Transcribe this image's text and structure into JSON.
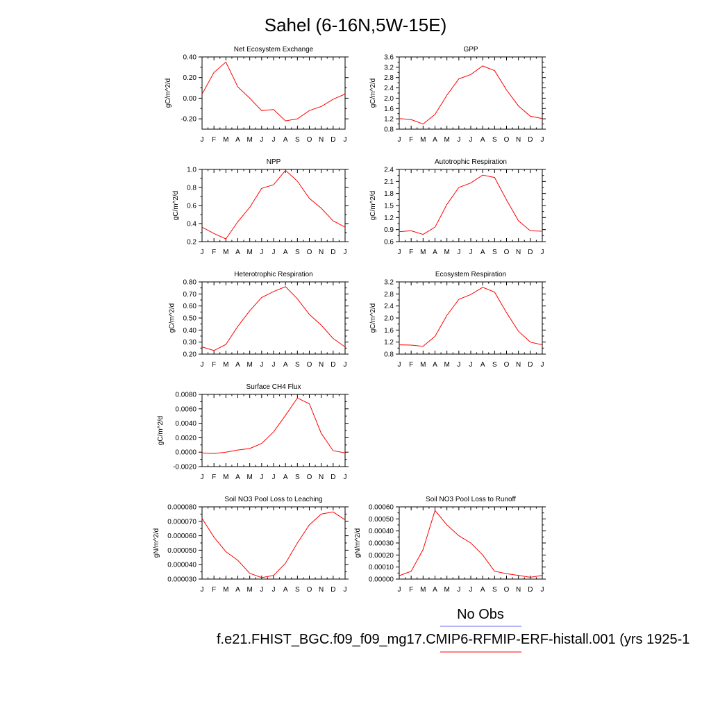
{
  "page": {
    "title": "Sahel (6-16N,5W-15E)",
    "legend": {
      "no_obs_label": "No Obs",
      "no_obs_color": "#6a6aee",
      "case_label": "f.e21.FHIST_BGC.f09_f09_mg17.CMIP6-RFMIP-ERF-histall.001 (yrs 1925-1",
      "case_color": "#ff0000"
    }
  },
  "chart_data": [
    {
      "type": "line",
      "title": "Net Ecosystem Exchange",
      "ylabel": "gC/m^2/d",
      "x": [
        "J",
        "F",
        "M",
        "A",
        "M",
        "J",
        "J",
        "A",
        "S",
        "O",
        "N",
        "D",
        "J"
      ],
      "ylim": [
        -0.3,
        0.4
      ],
      "yticks": [
        -0.2,
        0.0,
        0.2,
        0.4
      ],
      "yticklabels": [
        "-0.20",
        "0.00",
        "0.20",
        "0.40"
      ],
      "series": [
        {
          "color": "#ff0000",
          "values": [
            0.04,
            0.25,
            0.35,
            0.11,
            0.0,
            -0.12,
            -0.11,
            -0.22,
            -0.2,
            -0.12,
            -0.08,
            -0.01,
            0.04
          ]
        }
      ]
    },
    {
      "type": "line",
      "title": "GPP",
      "ylabel": "gC/m^2/d",
      "x": [
        "J",
        "F",
        "M",
        "A",
        "M",
        "J",
        "J",
        "A",
        "S",
        "O",
        "N",
        "D",
        "J"
      ],
      "ylim": [
        0.8,
        3.6
      ],
      "yticks": [
        0.8,
        1.2,
        1.6,
        2.0,
        2.4,
        2.8,
        3.2,
        3.6
      ],
      "yticklabels": [
        "0.8",
        "1.2",
        "1.6",
        "2.0",
        "2.4",
        "2.8",
        "3.2",
        "3.6"
      ],
      "series": [
        {
          "color": "#ff0000",
          "values": [
            1.21,
            1.17,
            1.0,
            1.37,
            2.12,
            2.75,
            2.92,
            3.25,
            3.07,
            2.32,
            1.7,
            1.3,
            1.21
          ]
        }
      ]
    },
    {
      "type": "line",
      "title": "NPP",
      "ylabel": "gC/m^2/d",
      "x": [
        "J",
        "F",
        "M",
        "A",
        "M",
        "J",
        "J",
        "A",
        "S",
        "O",
        "N",
        "D",
        "J"
      ],
      "ylim": [
        0.2,
        1.0
      ],
      "yticks": [
        0.2,
        0.4,
        0.6,
        0.8,
        1.0
      ],
      "yticklabels": [
        "0.2",
        "0.4",
        "0.6",
        "0.8",
        "1.0"
      ],
      "series": [
        {
          "color": "#ff0000",
          "values": [
            0.36,
            0.29,
            0.23,
            0.42,
            0.58,
            0.79,
            0.83,
            0.99,
            0.87,
            0.68,
            0.57,
            0.43,
            0.36
          ]
        }
      ]
    },
    {
      "type": "line",
      "title": "Autotrophic Respiration",
      "ylabel": "gC/m^2/d",
      "x": [
        "J",
        "F",
        "M",
        "A",
        "M",
        "J",
        "J",
        "A",
        "S",
        "O",
        "N",
        "D",
        "J"
      ],
      "ylim": [
        0.6,
        2.4
      ],
      "yticks": [
        0.6,
        0.9,
        1.2,
        1.5,
        1.8,
        2.1,
        2.4
      ],
      "yticklabels": [
        "0.6",
        "0.9",
        "1.2",
        "1.5",
        "1.8",
        "2.1",
        "2.4"
      ],
      "series": [
        {
          "color": "#ff0000",
          "values": [
            0.85,
            0.87,
            0.78,
            0.96,
            1.53,
            1.95,
            2.06,
            2.26,
            2.2,
            1.64,
            1.12,
            0.87,
            0.86
          ]
        }
      ]
    },
    {
      "type": "line",
      "title": "Heterotrophic Respiration",
      "ylabel": "gC/m^2/d",
      "x": [
        "J",
        "F",
        "M",
        "A",
        "M",
        "J",
        "J",
        "A",
        "S",
        "O",
        "N",
        "D",
        "J"
      ],
      "ylim": [
        0.2,
        0.8
      ],
      "yticks": [
        0.2,
        0.3,
        0.4,
        0.5,
        0.6,
        0.7,
        0.8
      ],
      "yticklabels": [
        "0.20",
        "0.30",
        "0.40",
        "0.50",
        "0.60",
        "0.70",
        "0.80"
      ],
      "series": [
        {
          "color": "#ff0000",
          "values": [
            0.26,
            0.23,
            0.28,
            0.43,
            0.56,
            0.67,
            0.72,
            0.76,
            0.66,
            0.53,
            0.44,
            0.33,
            0.26
          ]
        }
      ]
    },
    {
      "type": "line",
      "title": "Ecosystem Respiration",
      "ylabel": "gC/m^2/d",
      "x": [
        "J",
        "F",
        "M",
        "A",
        "M",
        "J",
        "J",
        "A",
        "S",
        "O",
        "N",
        "D",
        "J"
      ],
      "ylim": [
        0.8,
        3.2
      ],
      "yticks": [
        0.8,
        1.2,
        1.6,
        2.0,
        2.4,
        2.8,
        3.2
      ],
      "yticklabels": [
        "0.8",
        "1.2",
        "1.6",
        "2.0",
        "2.4",
        "2.8",
        "3.2"
      ],
      "series": [
        {
          "color": "#ff0000",
          "values": [
            1.11,
            1.1,
            1.06,
            1.39,
            2.09,
            2.62,
            2.78,
            3.02,
            2.86,
            2.18,
            1.56,
            1.2,
            1.11
          ]
        }
      ]
    },
    {
      "type": "line",
      "title": "Surface CH4 Flux",
      "ylabel": "gC/m^2/d",
      "x": [
        "J",
        "F",
        "M",
        "A",
        "M",
        "J",
        "J",
        "A",
        "S",
        "O",
        "N",
        "D",
        "J"
      ],
      "ylim": [
        -0.002,
        0.008
      ],
      "yticks": [
        -0.002,
        0.0,
        0.002,
        0.004,
        0.006,
        0.008
      ],
      "yticklabels": [
        "-0.0020",
        "0.0000",
        "0.0020",
        "0.0040",
        "0.0060",
        "0.0080"
      ],
      "series": [
        {
          "color": "#ff0000",
          "values": [
            -0.0001,
            -0.0002,
            0.0,
            0.0003,
            0.0005,
            0.0012,
            0.0028,
            0.0051,
            0.0075,
            0.0067,
            0.0026,
            0.0002,
            -0.0001
          ]
        }
      ]
    },
    {
      "type": "line",
      "title": "Soil NO3 Pool Loss to Leaching",
      "ylabel": "gN/m^2/d",
      "x": [
        "J",
        "F",
        "M",
        "A",
        "M",
        "J",
        "J",
        "A",
        "S",
        "O",
        "N",
        "D",
        "J"
      ],
      "ylim": [
        3e-05,
        8e-05
      ],
      "yticks": [
        3e-05,
        4e-05,
        5e-05,
        6e-05,
        7e-05,
        8e-05
      ],
      "yticklabels": [
        "0.000030",
        "0.000040",
        "0.000050",
        "0.000060",
        "0.000070",
        "0.000080"
      ],
      "series": [
        {
          "color": "#ff0000",
          "values": [
            7.2e-05,
            5.9e-05,
            4.9e-05,
            4.3e-05,
            3.4e-05,
            3.1e-05,
            3.25e-05,
            4.1e-05,
            5.5e-05,
            6.75e-05,
            7.5e-05,
            7.65e-05,
            7.1e-05
          ]
        }
      ]
    },
    {
      "type": "line",
      "title": "Soil NO3 Pool Loss to Runoff",
      "ylabel": "gN/m^2/d",
      "x": [
        "J",
        "F",
        "M",
        "A",
        "M",
        "J",
        "J",
        "A",
        "S",
        "O",
        "N",
        "D",
        "J"
      ],
      "ylim": [
        0.0,
        0.0006
      ],
      "yticks": [
        0.0,
        0.0001,
        0.0002,
        0.0003,
        0.0004,
        0.0005,
        0.0006
      ],
      "yticklabels": [
        "0.00000",
        "0.00010",
        "0.00020",
        "0.00030",
        "0.00040",
        "0.00050",
        "0.00060"
      ],
      "series": [
        {
          "color": "#ff0000",
          "values": [
            2.8e-05,
            6.5e-05,
            0.000245,
            0.00057,
            0.00045,
            0.00036,
            0.0003,
            0.0002,
            6.5e-05,
            4.5e-05,
            3e-05,
            1.5e-05,
            3e-05
          ]
        }
      ]
    }
  ]
}
